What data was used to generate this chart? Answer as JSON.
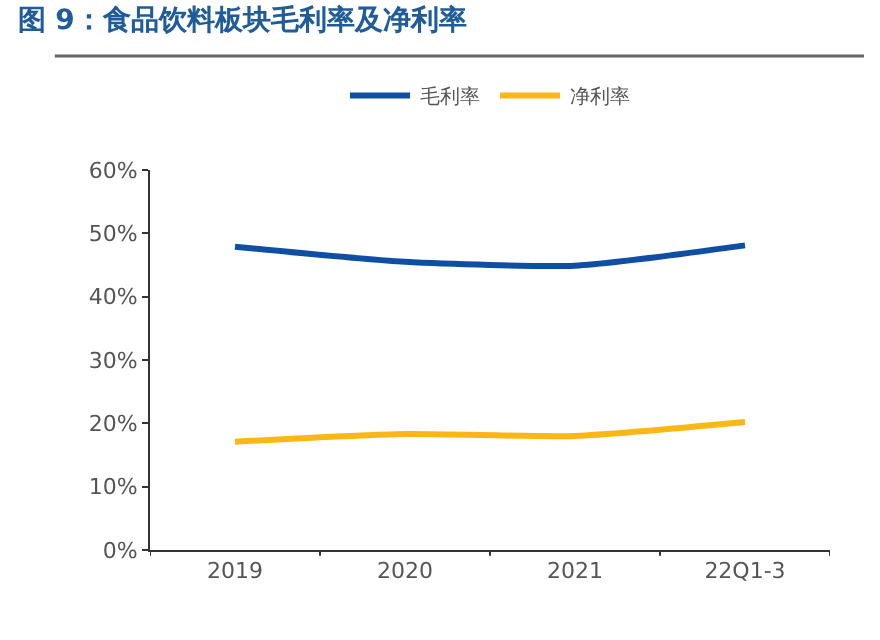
{
  "chart_data": {
    "type": "line",
    "title": "图 9：食品饮料板块毛利率及净利率",
    "categories": [
      "2019",
      "2020",
      "2021",
      "22Q1-3"
    ],
    "series": [
      {
        "name": "毛利率",
        "color": "#0f4fa3",
        "values": [
          47.9,
          45.5,
          44.9,
          48.1
        ]
      },
      {
        "name": "净利率",
        "color": "#fbb716",
        "values": [
          17.1,
          18.3,
          18.0,
          20.2
        ]
      }
    ],
    "ylim": [
      0,
      60
    ],
    "yticks": [
      {
        "value": 0,
        "label": "0%"
      },
      {
        "value": 10,
        "label": "10%"
      },
      {
        "value": 20,
        "label": "20%"
      },
      {
        "value": 30,
        "label": "30%"
      },
      {
        "value": 40,
        "label": "40%"
      },
      {
        "value": 50,
        "label": "50%"
      },
      {
        "value": 60,
        "label": "60%"
      }
    ],
    "legend": "top",
    "marker": "none",
    "line_style": "solid"
  }
}
